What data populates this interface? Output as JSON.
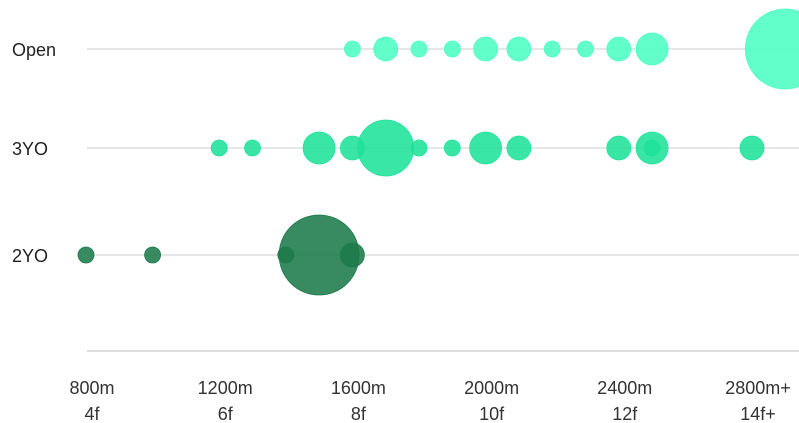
{
  "chart_data": {
    "type": "scatter",
    "title": "",
    "xlabel": "",
    "ylabel": "",
    "x_unit": "m",
    "xlim": [
      800,
      2900
    ],
    "rows": [
      "Open",
      "3YO",
      "2YO"
    ],
    "x_ticks": [
      {
        "value": 800,
        "label": "800m",
        "sublabel": "4f"
      },
      {
        "value": 1200,
        "label": "1200m",
        "sublabel": "6f"
      },
      {
        "value": 1600,
        "label": "1600m",
        "sublabel": "8f"
      },
      {
        "value": 2000,
        "label": "2000m",
        "sublabel": "10f"
      },
      {
        "value": 2400,
        "label": "2400m",
        "sublabel": "12f"
      },
      {
        "value": 2800,
        "label": "2800m+",
        "sublabel": "14f+"
      }
    ],
    "grid": false,
    "legend": "none",
    "colors": {
      "Open": "#4dffc3",
      "3YO": "#1fe39a",
      "2YO": "#1c7a4a"
    },
    "series": [
      {
        "name": "Open",
        "points": [
          {
            "x": 1600,
            "size": 4
          },
          {
            "x": 1700,
            "size": 9
          },
          {
            "x": 1800,
            "size": 4
          },
          {
            "x": 1900,
            "size": 4
          },
          {
            "x": 2000,
            "size": 9
          },
          {
            "x": 2100,
            "size": 9
          },
          {
            "x": 2200,
            "size": 4
          },
          {
            "x": 2300,
            "size": 4
          },
          {
            "x": 2400,
            "size": 9
          },
          {
            "x": 2500,
            "size": 16
          },
          {
            "x": 2900,
            "size": 100
          }
        ]
      },
      {
        "name": "3YO",
        "points": [
          {
            "x": 1200,
            "size": 4
          },
          {
            "x": 1300,
            "size": 4
          },
          {
            "x": 1500,
            "size": 16
          },
          {
            "x": 1600,
            "size": 9
          },
          {
            "x": 1700,
            "size": 49
          },
          {
            "x": 1800,
            "size": 4
          },
          {
            "x": 1900,
            "size": 4
          },
          {
            "x": 2000,
            "size": 16
          },
          {
            "x": 2100,
            "size": 9
          },
          {
            "x": 2400,
            "size": 9
          },
          {
            "x": 2500,
            "size": 16
          },
          {
            "x": 2500,
            "size": 4
          },
          {
            "x": 2800,
            "size": 9
          }
        ]
      },
      {
        "name": "2YO",
        "points": [
          {
            "x": 800,
            "size": 4
          },
          {
            "x": 1000,
            "size": 4
          },
          {
            "x": 1400,
            "size": 4
          },
          {
            "x": 1500,
            "size": 100
          },
          {
            "x": 1600,
            "size": 9
          }
        ]
      }
    ]
  }
}
